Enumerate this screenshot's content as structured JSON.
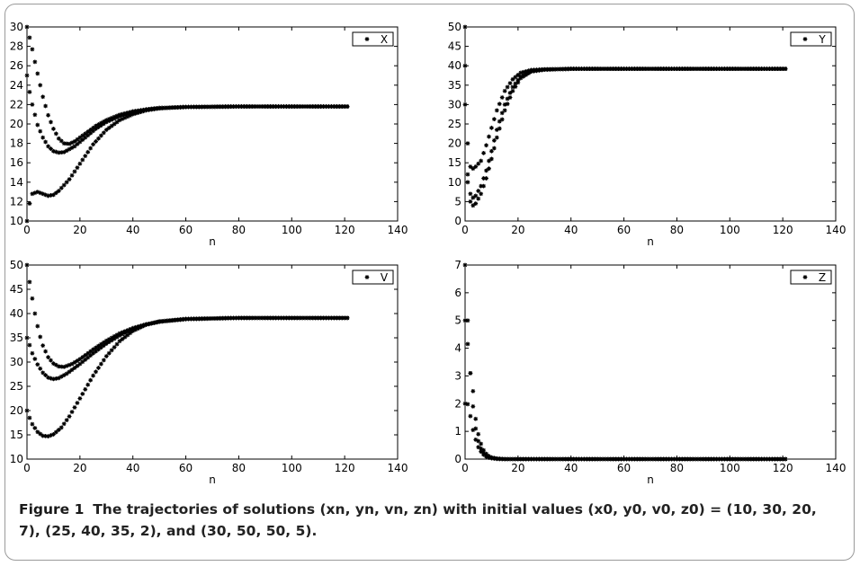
{
  "caption": {
    "label": "Figure 1",
    "text": "The trajectories of solutions (xn, yn, vn, zn) with initial values (x0, y0, v0, z0) = (10, 30, 20, 7), (25, 40, 35, 2), and (30, 50, 50, 5)."
  },
  "colors": {
    "marker": "#000000",
    "axis": "#000000",
    "background": "#ffffff",
    "frame": "#9a9a9a"
  },
  "chart_data": [
    {
      "type": "scatter",
      "marker": "*",
      "legend": "X",
      "legend_position": "top-right",
      "xlabel": "n",
      "ylabel": "",
      "xlim": [
        0,
        140
      ],
      "ylim": [
        10,
        30
      ],
      "xticks": [
        "0",
        "20",
        "40",
        "60",
        "80",
        "100",
        "120",
        "140"
      ],
      "yticks": [
        "10",
        "12",
        "14",
        "16",
        "18",
        "20",
        "22",
        "24",
        "26",
        "28",
        "30"
      ],
      "n_max": 121,
      "series": [
        {
          "initial": 10,
          "points": [
            [
              0,
              10
            ],
            [
              1,
              11.8
            ],
            [
              2,
              12.8
            ],
            [
              4,
              13
            ],
            [
              6,
              12.8
            ],
            [
              8,
              12.6
            ],
            [
              10,
              12.7
            ],
            [
              12,
              13.1
            ],
            [
              16,
              14.3
            ],
            [
              20,
              15.9
            ],
            [
              25,
              17.9
            ],
            [
              30,
              19.4
            ],
            [
              35,
              20.4
            ],
            [
              40,
              21.0
            ],
            [
              45,
              21.4
            ],
            [
              50,
              21.6
            ],
            [
              60,
              21.75
            ],
            [
              80,
              21.8
            ],
            [
              121,
              21.8
            ]
          ]
        },
        {
          "initial": 25,
          "points": [
            [
              0,
              25
            ],
            [
              1,
              23.3
            ],
            [
              2,
              22.0
            ],
            [
              4,
              19.9
            ],
            [
              6,
              18.6
            ],
            [
              8,
              17.7
            ],
            [
              10,
              17.2
            ],
            [
              12,
              17.05
            ],
            [
              14,
              17.1
            ],
            [
              18,
              17.7
            ],
            [
              22,
              18.6
            ],
            [
              26,
              19.5
            ],
            [
              30,
              20.2
            ],
            [
              35,
              20.8
            ],
            [
              40,
              21.2
            ],
            [
              45,
              21.5
            ],
            [
              50,
              21.65
            ],
            [
              60,
              21.75
            ],
            [
              80,
              21.8
            ],
            [
              121,
              21.8
            ]
          ]
        },
        {
          "initial": 30,
          "points": [
            [
              0,
              30
            ],
            [
              1,
              28.9
            ],
            [
              2,
              27.7
            ],
            [
              3,
              26.4
            ],
            [
              4,
              25.2
            ],
            [
              5,
              24.0
            ],
            [
              6,
              22.8
            ],
            [
              8,
              20.9
            ],
            [
              10,
              19.5
            ],
            [
              12,
              18.5
            ],
            [
              14,
              18.0
            ],
            [
              16,
              17.95
            ],
            [
              18,
              18.2
            ],
            [
              22,
              19.0
            ],
            [
              26,
              19.8
            ],
            [
              30,
              20.4
            ],
            [
              35,
              20.95
            ],
            [
              40,
              21.3
            ],
            [
              45,
              21.5
            ],
            [
              50,
              21.65
            ],
            [
              60,
              21.75
            ],
            [
              80,
              21.8
            ],
            [
              121,
              21.8
            ]
          ]
        }
      ]
    },
    {
      "type": "scatter",
      "marker": "*",
      "legend": "Y",
      "legend_position": "top-right",
      "xlabel": "n",
      "ylabel": "",
      "xlim": [
        0,
        140
      ],
      "ylim": [
        0,
        50
      ],
      "xticks": [
        "0",
        "20",
        "40",
        "60",
        "80",
        "100",
        "120",
        "140"
      ],
      "yticks": [
        "0",
        "5",
        "10",
        "15",
        "20",
        "25",
        "30",
        "35",
        "40",
        "45",
        "50"
      ],
      "n_max": 121,
      "series": [
        {
          "initial": 30,
          "points": [
            [
              0,
              30
            ],
            [
              1,
              20
            ],
            [
              2,
              14
            ],
            [
              3,
              13.5
            ],
            [
              4,
              14
            ],
            [
              6,
              15.5
            ],
            [
              8,
              19.5
            ],
            [
              10,
              24
            ],
            [
              12,
              28.5
            ],
            [
              15,
              33.5
            ],
            [
              18,
              36.5
            ],
            [
              21,
              38.2
            ],
            [
              25,
              38.9
            ],
            [
              30,
              39.1
            ],
            [
              40,
              39.2
            ],
            [
              121,
              39.2
            ]
          ]
        },
        {
          "initial": 40,
          "points": [
            [
              0,
              40
            ],
            [
              1,
              12
            ],
            [
              2,
              7
            ],
            [
              3,
              6
            ],
            [
              4,
              6.5
            ],
            [
              6,
              9
            ],
            [
              8,
              13
            ],
            [
              10,
              18
            ],
            [
              12,
              23.5
            ],
            [
              15,
              30
            ],
            [
              18,
              34.5
            ],
            [
              21,
              37.2
            ],
            [
              25,
              38.6
            ],
            [
              30,
              39.0
            ],
            [
              40,
              39.2
            ],
            [
              121,
              39.2
            ]
          ]
        },
        {
          "initial": 50,
          "points": [
            [
              0,
              50
            ],
            [
              1,
              10
            ],
            [
              2,
              5
            ],
            [
              3,
              4
            ],
            [
              4,
              4.5
            ],
            [
              6,
              7
            ],
            [
              8,
              11
            ],
            [
              10,
              16
            ],
            [
              12,
              21.5
            ],
            [
              15,
              28.5
            ],
            [
              18,
              33.5
            ],
            [
              21,
              36.8
            ],
            [
              25,
              38.5
            ],
            [
              30,
              39.0
            ],
            [
              40,
              39.2
            ],
            [
              121,
              39.2
            ]
          ]
        }
      ]
    },
    {
      "type": "scatter",
      "marker": "*",
      "legend": "V",
      "legend_position": "top-right",
      "xlabel": "n",
      "ylabel": "",
      "xlim": [
        0,
        140
      ],
      "ylim": [
        10,
        50
      ],
      "xticks": [
        "0",
        "20",
        "40",
        "60",
        "80",
        "100",
        "120",
        "140"
      ],
      "yticks": [
        "10",
        "15",
        "20",
        "25",
        "30",
        "35",
        "40",
        "45",
        "50"
      ],
      "n_max": 121,
      "series": [
        {
          "initial": 20,
          "points": [
            [
              0,
              20
            ],
            [
              1,
              18.5
            ],
            [
              2,
              17.2
            ],
            [
              4,
              15.6
            ],
            [
              6,
              14.8
            ],
            [
              8,
              14.7
            ],
            [
              10,
              15.1
            ],
            [
              13,
              16.5
            ],
            [
              16,
              18.8
            ],
            [
              20,
              22.5
            ],
            [
              25,
              27.2
            ],
            [
              30,
              31.2
            ],
            [
              35,
              34.3
            ],
            [
              40,
              36.4
            ],
            [
              45,
              37.7
            ],
            [
              50,
              38.4
            ],
            [
              60,
              38.9
            ],
            [
              80,
              39.1
            ],
            [
              121,
              39.1
            ]
          ]
        },
        {
          "initial": 35,
          "points": [
            [
              0,
              35
            ],
            [
              1,
              33.5
            ],
            [
              2,
              31.8
            ],
            [
              4,
              29.5
            ],
            [
              6,
              27.8
            ],
            [
              8,
              26.8
            ],
            [
              10,
              26.5
            ],
            [
              12,
              26.7
            ],
            [
              15,
              27.6
            ],
            [
              20,
              29.6
            ],
            [
              25,
              31.8
            ],
            [
              30,
              33.8
            ],
            [
              35,
              35.5
            ],
            [
              40,
              36.8
            ],
            [
              45,
              37.7
            ],
            [
              50,
              38.3
            ],
            [
              60,
              38.85
            ],
            [
              80,
              39.1
            ],
            [
              121,
              39.1
            ]
          ]
        },
        {
          "initial": 50,
          "points": [
            [
              0,
              50
            ],
            [
              1,
              46.5
            ],
            [
              2,
              43.1
            ],
            [
              3,
              40.0
            ],
            [
              4,
              37.4
            ],
            [
              5,
              35.2
            ],
            [
              6,
              33.4
            ],
            [
              8,
              31.0
            ],
            [
              10,
              29.7
            ],
            [
              12,
              29.1
            ],
            [
              14,
              29.0
            ],
            [
              17,
              29.6
            ],
            [
              20,
              30.6
            ],
            [
              25,
              32.6
            ],
            [
              30,
              34.4
            ],
            [
              35,
              35.9
            ],
            [
              40,
              37.0
            ],
            [
              45,
              37.8
            ],
            [
              50,
              38.3
            ],
            [
              60,
              38.85
            ],
            [
              80,
              39.1
            ],
            [
              121,
              39.1
            ]
          ]
        }
      ]
    },
    {
      "type": "scatter",
      "marker": "*",
      "legend": "Z",
      "legend_position": "top-right",
      "xlabel": "n",
      "ylabel": "",
      "xlim": [
        0,
        140
      ],
      "ylim": [
        0,
        7
      ],
      "xticks": [
        "0",
        "20",
        "40",
        "60",
        "80",
        "100",
        "120",
        "140"
      ],
      "yticks": [
        "0",
        "1",
        "2",
        "3",
        "4",
        "5",
        "6",
        "7"
      ],
      "n_max": 121,
      "series": [
        {
          "initial": 7,
          "points": [
            [
              0,
              7
            ],
            [
              1,
              5.0
            ],
            [
              2,
              3.1
            ],
            [
              3,
              1.9
            ],
            [
              4,
              1.1
            ],
            [
              5,
              0.65
            ],
            [
              6,
              0.38
            ],
            [
              7,
              0.22
            ],
            [
              8,
              0.13
            ],
            [
              9,
              0.07
            ],
            [
              10,
              0.04
            ],
            [
              12,
              0.01
            ],
            [
              15,
              0
            ],
            [
              121,
              0
            ]
          ]
        },
        {
          "initial": 2,
          "points": [
            [
              0,
              2
            ],
            [
              1,
              1.98
            ],
            [
              2,
              1.55
            ],
            [
              3,
              1.05
            ],
            [
              4,
              0.7
            ],
            [
              5,
              0.43
            ],
            [
              6,
              0.27
            ],
            [
              7,
              0.16
            ],
            [
              8,
              0.09
            ],
            [
              9,
              0.05
            ],
            [
              10,
              0.03
            ],
            [
              12,
              0.01
            ],
            [
              15,
              0
            ],
            [
              121,
              0
            ]
          ]
        },
        {
          "initial": 5,
          "points": [
            [
              0,
              5
            ],
            [
              1,
              4.15
            ],
            [
              2,
              3.1
            ],
            [
              3,
              2.45
            ],
            [
              4,
              1.45
            ],
            [
              5,
              0.9
            ],
            [
              6,
              0.55
            ],
            [
              7,
              0.32
            ],
            [
              8,
              0.19
            ],
            [
              9,
              0.11
            ],
            [
              10,
              0.06
            ],
            [
              12,
              0.02
            ],
            [
              15,
              0
            ],
            [
              121,
              0
            ]
          ]
        }
      ]
    }
  ]
}
